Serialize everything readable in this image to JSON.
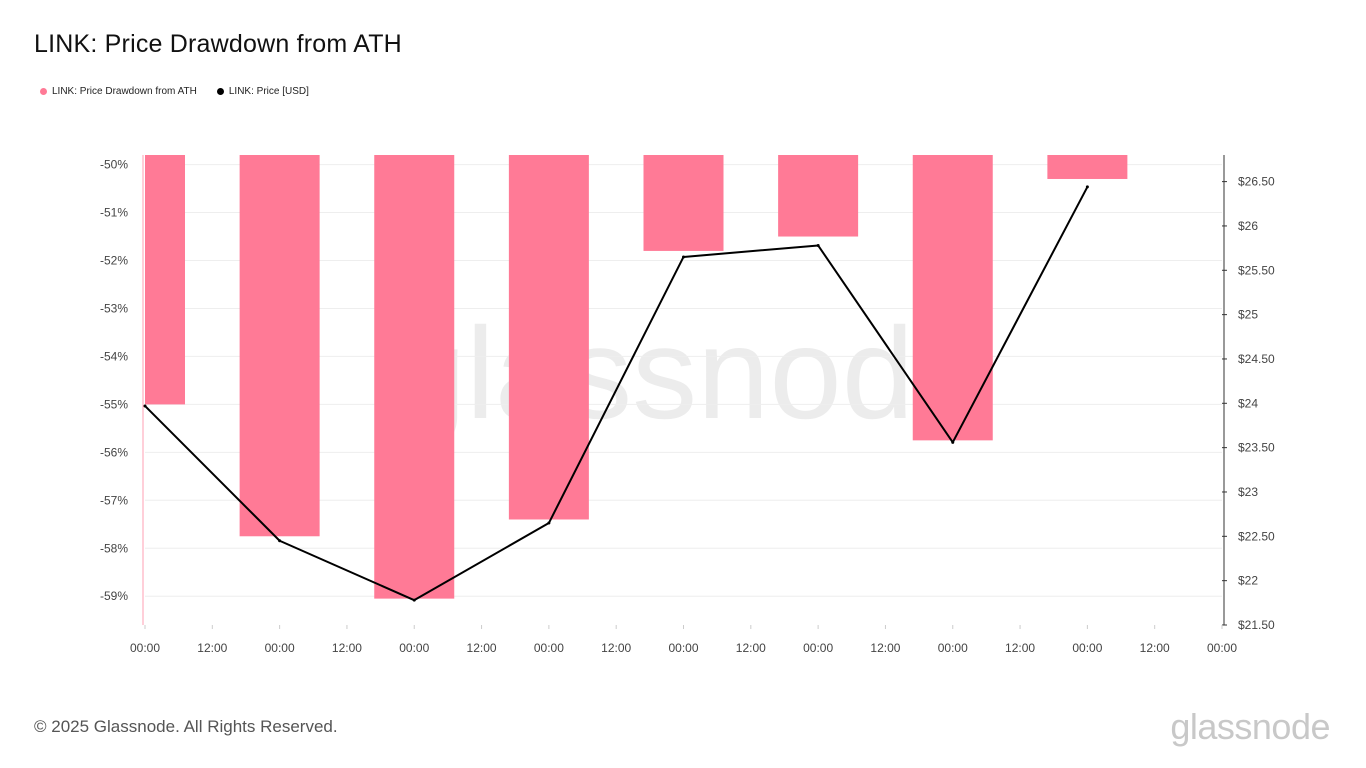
{
  "title": "LINK: Price Drawdown from ATH",
  "legend": [
    {
      "label": "LINK: Price Drawdown from ATH",
      "color": "#ff7a96"
    },
    {
      "label": "LINK: Price [USD]",
      "color": "#000000"
    }
  ],
  "footer": "© 2025 Glassnode. All Rights Reserved.",
  "brand": "glassnode",
  "watermark": "glassnode",
  "chart_data": {
    "type": "bar",
    "x_tick_labels": [
      "00:00",
      "12:00",
      "00:00",
      "12:00",
      "00:00",
      "12:00",
      "00:00",
      "12:00",
      "00:00",
      "12:00",
      "00:00",
      "12:00",
      "00:00",
      "12:00",
      "00:00",
      "12:00",
      "00:00"
    ],
    "left_axis": {
      "ticks": [
        "-50%",
        "-51%",
        "-52%",
        "-53%",
        "-54%",
        "-55%",
        "-56%",
        "-57%",
        "-58%",
        "-59%"
      ],
      "ylim": [
        -59.6,
        -49.8
      ]
    },
    "right_axis": {
      "ticks": [
        "$26.50",
        "$26",
        "$25.50",
        "$25",
        "$24.50",
        "$24",
        "$23.50",
        "$23",
        "$22.50",
        "$22",
        "$21.50"
      ],
      "ylim": [
        21.5,
        26.8
      ]
    },
    "grid": true,
    "legend_position": "top-left",
    "series": [
      {
        "name": "LINK: Price Drawdown from ATH",
        "type": "bar",
        "color": "#ff7a96",
        "x": [
          0,
          1,
          2,
          3,
          4,
          5,
          6,
          7
        ],
        "values": [
          -55.0,
          -57.75,
          -59.05,
          -57.4,
          -51.8,
          -51.5,
          -55.75,
          -50.3
        ]
      },
      {
        "name": "LINK: Price [USD]",
        "type": "line",
        "color": "#000000",
        "x": [
          0,
          1,
          2,
          3,
          4,
          5,
          6,
          7
        ],
        "values": [
          23.97,
          22.45,
          21.78,
          22.65,
          25.65,
          25.78,
          23.56,
          26.44
        ]
      }
    ]
  }
}
